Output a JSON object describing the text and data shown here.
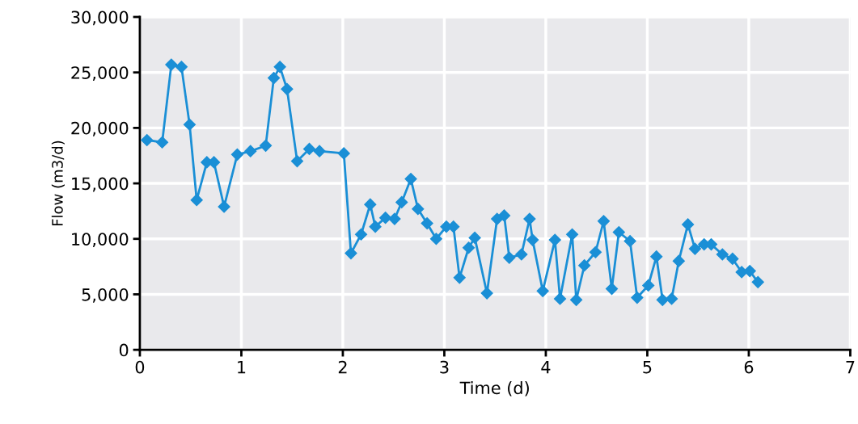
{
  "chart_data": {
    "type": "line",
    "xlabel": "Time (d)",
    "ylabel": "Flow (m3/d)",
    "xlim": [
      0,
      7
    ],
    "xticks": [
      0,
      1,
      2,
      3,
      4,
      5,
      6,
      7
    ],
    "ylim": [
      0,
      30000
    ],
    "yticks": [
      {
        "value": 0,
        "label": "0"
      },
      {
        "value": 5000,
        "label": "5,000"
      },
      {
        "value": 10000,
        "label": "10,000"
      },
      {
        "value": 15000,
        "label": "15,000"
      },
      {
        "value": 20000,
        "label": "20,000"
      },
      {
        "value": 25000,
        "label": "25,000"
      },
      {
        "value": 30000,
        "label": "30,000"
      }
    ],
    "grid": true,
    "marker": "diamond",
    "line_style": "solid",
    "series": [
      {
        "color": "#1a8fd6",
        "x": [
          0.07,
          0.22,
          0.31,
          0.41,
          0.49,
          0.56,
          0.66,
          0.73,
          0.83,
          0.96,
          1.09,
          1.24,
          1.32,
          1.38,
          1.45,
          1.55,
          1.67,
          1.77,
          2.01,
          2.08,
          2.18,
          2.27,
          2.32,
          2.42,
          2.51,
          2.58,
          2.67,
          2.74,
          2.83,
          2.92,
          3.02,
          3.09,
          3.15,
          3.24,
          3.3,
          3.42,
          3.52,
          3.59,
          3.64,
          3.76,
          3.84,
          3.87,
          3.97,
          4.09,
          4.14,
          4.26,
          4.3,
          4.38,
          4.49,
          4.57,
          4.65,
          4.72,
          4.83,
          4.9,
          5.01,
          5.09,
          5.15,
          5.24,
          5.31,
          5.4,
          5.47,
          5.56,
          5.63,
          5.74,
          5.84,
          5.93,
          6.01,
          6.09
        ],
        "values": [
          18900,
          18700,
          25700,
          25500,
          20300,
          13500,
          16900,
          16900,
          12900,
          17600,
          17900,
          18400,
          24500,
          25500,
          23500,
          17000,
          18100,
          17900,
          17700,
          8700,
          10400,
          13100,
          11100,
          11900,
          11800,
          13300,
          15400,
          12700,
          11400,
          10000,
          11100,
          11100,
          6500,
          9200,
          10100,
          5100,
          11800,
          12100,
          8300,
          8600,
          11800,
          9900,
          5300,
          9900,
          4600,
          10400,
          4500,
          7600,
          8800,
          11600,
          5500,
          10600,
          9800,
          4700,
          5800,
          8400,
          4500,
          4600,
          8000,
          11300,
          9100,
          9500,
          9500,
          8600,
          8200,
          7000,
          7100,
          6100
        ]
      }
    ]
  }
}
